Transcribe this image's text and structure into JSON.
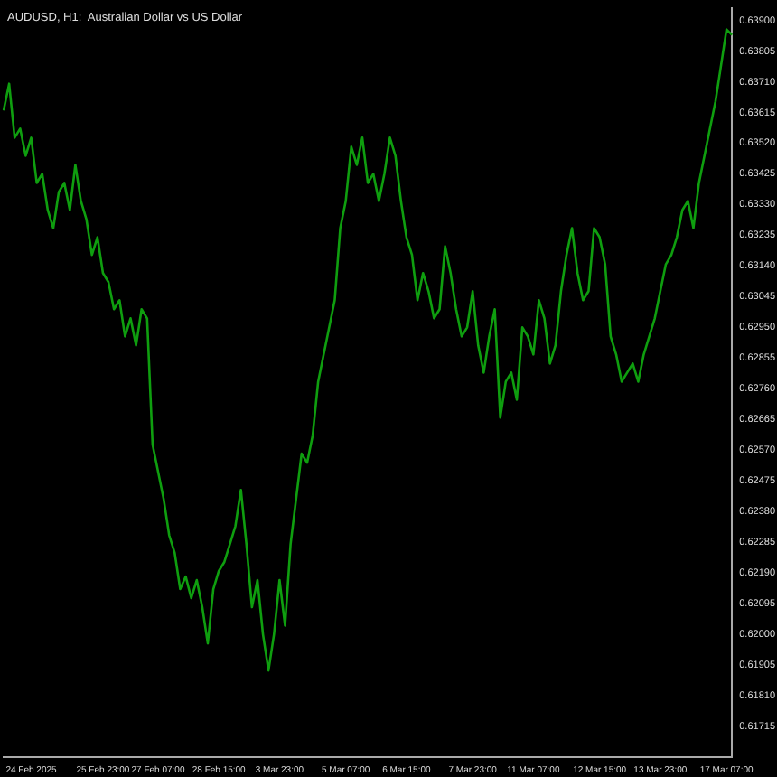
{
  "chart_data": {
    "type": "line",
    "title": "AUDUSD, H1:  Australian Dollar vs US Dollar",
    "categories": [
      null,
      null,
      null,
      null,
      null,
      "24 Feb 2025",
      null,
      null,
      null,
      null,
      null,
      null,
      null,
      null,
      null,
      null,
      null,
      null,
      "25 Feb 23:00",
      null,
      null,
      null,
      null,
      null,
      null,
      null,
      null,
      null,
      "27 Feb 07:00",
      null,
      null,
      null,
      null,
      null,
      null,
      null,
      null,
      null,
      null,
      "28 Feb 15:00",
      null,
      null,
      null,
      null,
      null,
      null,
      null,
      null,
      null,
      null,
      "3 Mar 23:00",
      null,
      null,
      null,
      null,
      null,
      null,
      null,
      null,
      null,
      null,
      null,
      "5 Mar 07:00",
      null,
      null,
      null,
      null,
      null,
      null,
      null,
      null,
      null,
      null,
      "6 Mar 15:00",
      null,
      null,
      null,
      null,
      null,
      null,
      null,
      null,
      null,
      null,
      null,
      "7 Mar 23:00",
      null,
      null,
      null,
      null,
      null,
      null,
      null,
      null,
      null,
      null,
      "11 Mar 07:00",
      null,
      null,
      null,
      null,
      null,
      null,
      null,
      null,
      null,
      null,
      null,
      "12 Mar 15:00",
      null,
      null,
      null,
      null,
      null,
      null,
      null,
      null,
      null,
      null,
      "13 Mar 23:00",
      null,
      null,
      null,
      null,
      null,
      null,
      null,
      null,
      null,
      null,
      null,
      "17 Mar 07:00",
      null
    ],
    "series": [
      {
        "color": "#0f9e0f",
        "values": [
          0.63621,
          0.63704,
          0.63537,
          0.63565,
          0.63481,
          0.63537,
          0.63397,
          0.63425,
          0.63313,
          0.63257,
          0.63369,
          0.63397,
          0.63313,
          0.63453,
          0.63341,
          0.63285,
          0.63174,
          0.63229,
          0.63118,
          0.6309,
          0.63006,
          0.63034,
          0.62922,
          0.62978,
          0.62894,
          0.63006,
          0.62978,
          0.62587,
          0.62503,
          0.62419,
          0.62307,
          0.62252,
          0.6214,
          0.62179,
          0.62112,
          0.62168,
          0.62084,
          0.61972,
          0.6214,
          0.62196,
          0.62224,
          0.62279,
          0.62335,
          0.62447,
          0.62279,
          0.62084,
          0.62168,
          0.62,
          0.61888,
          0.62,
          0.62168,
          0.62027,
          0.62279,
          0.62419,
          0.62559,
          0.62531,
          0.62615,
          0.62782,
          0.62866,
          0.6295,
          0.63034,
          0.63257,
          0.63341,
          0.63509,
          0.63453,
          0.63537,
          0.63397,
          0.63425,
          0.63341,
          0.63425,
          0.63537,
          0.63481,
          0.63341,
          0.63229,
          0.63174,
          0.63034,
          0.63118,
          0.63062,
          0.62978,
          0.63006,
          0.63201,
          0.63118,
          0.63006,
          0.62922,
          0.6295,
          0.63062,
          0.62894,
          0.6281,
          0.62922,
          0.63006,
          0.62671,
          0.62782,
          0.6281,
          0.62726,
          0.6295,
          0.62922,
          0.62866,
          0.63034,
          0.62978,
          0.62838,
          0.62894,
          0.63062,
          0.63174,
          0.63257,
          0.63118,
          0.63034,
          0.63062,
          0.63257,
          0.63229,
          0.63145,
          0.62922,
          0.62866,
          0.62782,
          0.6281,
          0.62838,
          0.62782,
          0.62866,
          0.62922,
          0.62978,
          0.63062,
          0.63145,
          0.63174,
          0.63229,
          0.63313,
          0.63341,
          0.63257,
          0.63397,
          0.63481,
          0.63565,
          0.63649,
          0.6376,
          0.63872,
          0.63855
        ]
      }
    ],
    "ylim": [
      0.6162,
      0.63939
    ],
    "yticks": [
      {
        "value": 0.639,
        "label": "0.63900"
      },
      {
        "value": 0.63805,
        "label": "0.63805"
      },
      {
        "value": 0.6371,
        "label": "0.63710"
      },
      {
        "value": 0.63615,
        "label": "0.63615"
      },
      {
        "value": 0.6352,
        "label": "0.63520"
      },
      {
        "value": 0.63425,
        "label": "0.63425"
      },
      {
        "value": 0.6333,
        "label": "0.63330"
      },
      {
        "value": 0.63235,
        "label": "0.63235"
      },
      {
        "value": 0.6314,
        "label": "0.63140"
      },
      {
        "value": 0.63045,
        "label": "0.63045"
      },
      {
        "value": 0.6295,
        "label": "0.62950"
      },
      {
        "value": 0.62855,
        "label": "0.62855"
      },
      {
        "value": 0.6276,
        "label": "0.62760"
      },
      {
        "value": 0.62665,
        "label": "0.62665"
      },
      {
        "value": 0.6257,
        "label": "0.62570"
      },
      {
        "value": 0.62475,
        "label": "0.62475"
      },
      {
        "value": 0.6238,
        "label": "0.62380"
      },
      {
        "value": 0.62285,
        "label": "0.62285"
      },
      {
        "value": 0.6219,
        "label": "0.62190"
      },
      {
        "value": 0.62095,
        "label": "0.62095"
      },
      {
        "value": 0.62,
        "label": "0.62000"
      },
      {
        "value": 0.61905,
        "label": "0.61905"
      },
      {
        "value": 0.6181,
        "label": "0.61810"
      },
      {
        "value": 0.61715,
        "label": "0.61715"
      }
    ],
    "grid": false,
    "marker": "none",
    "line_style": "solid"
  }
}
